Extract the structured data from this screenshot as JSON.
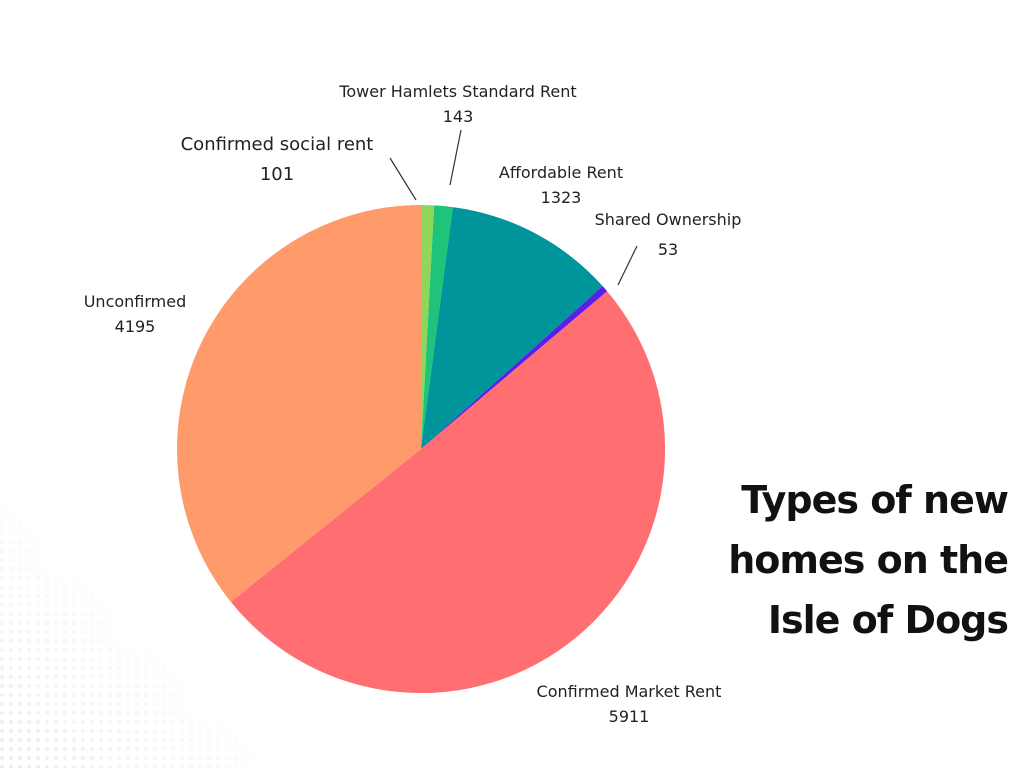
{
  "title_lines": [
    "Types of new",
    "homes on the",
    "Isle of Dogs"
  ],
  "chart_data": {
    "type": "pie",
    "title": "Types of new homes on the Isle of Dogs",
    "slices": [
      {
        "label": "Confirmed social rent",
        "value": 101,
        "color": "#8fd65a"
      },
      {
        "label": "Tower Hamlets Standard Rent",
        "value": 143,
        "color": "#1fc47a"
      },
      {
        "label": "Affordable Rent",
        "value": 1323,
        "color": "#00959a"
      },
      {
        "label": "Shared Ownership",
        "value": 53,
        "color": "#5a1ee8"
      },
      {
        "label": "Confirmed Market Rent",
        "value": 5911,
        "color": "#ff6f72"
      },
      {
        "label": "Unconfirmed",
        "value": 4195,
        "color": "#ff9a6a"
      }
    ],
    "start": "top",
    "direction": "clockwise"
  }
}
